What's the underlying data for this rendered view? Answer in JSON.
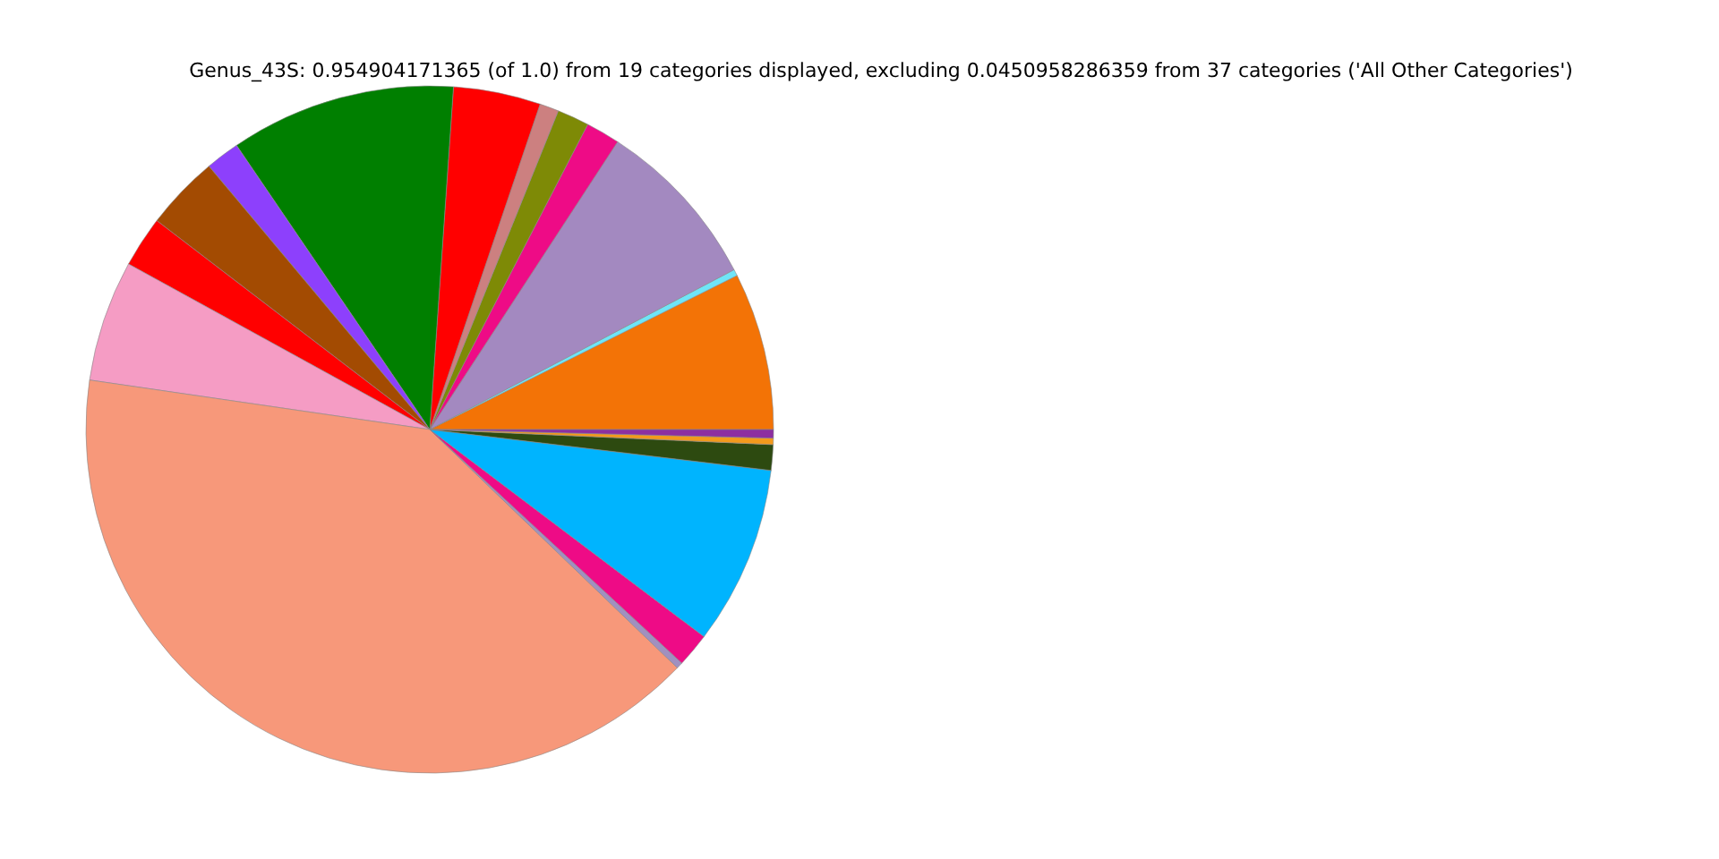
{
  "chart_data": {
    "type": "pie",
    "title": "Genus_43S: 0.954904171365 (of 1.0) from 19 categories displayed, excluding 0.0450958286359 from 37 categories ('All Other Categories')",
    "categories": [
      null,
      null,
      null,
      null,
      null,
      null,
      null,
      null,
      null,
      null,
      null,
      null,
      null,
      null,
      null,
      null,
      null,
      null,
      null
    ],
    "values": [
      7.4,
      0.3,
      8.1,
      1.6,
      1.5,
      0.9,
      4.1,
      10.6,
      1.6,
      3.5,
      2.4,
      5.7,
      40.1,
      0.3,
      1.6,
      8.4,
      1.2,
      0.3,
      0.4
    ],
    "colors": [
      "#f37306",
      "#6fe5f7",
      "#a389c0",
      "#ee0b86",
      "#7e8a06",
      "#cc8080",
      "#ff0000",
      "#007f00",
      "#8d40fc",
      "#a34b02",
      "#ff0000",
      "#f59cc4",
      "#f7987a",
      "#a090c0",
      "#ee0b86",
      "#00b4fe",
      "#2d4a10",
      "#f39a1c",
      "#8d2fa0"
    ]
  }
}
